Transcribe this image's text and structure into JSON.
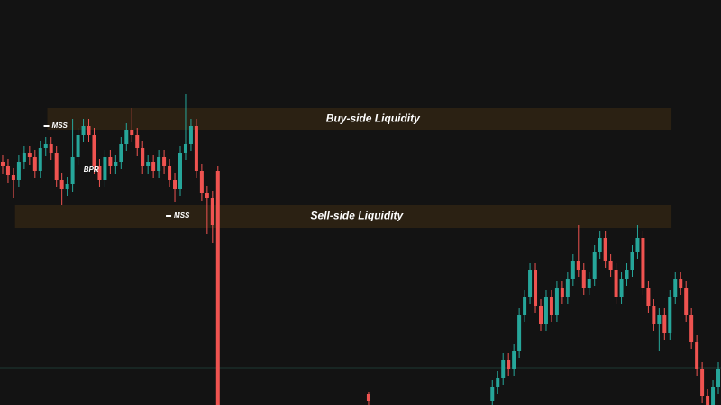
{
  "chart_data": {
    "type": "candlestick",
    "xlim": [
      -0.5,
      133.5
    ],
    "ylim": [
      0,
      450
    ],
    "up_color": "#26a69a",
    "down_color": "#ef5350",
    "x": [
      0,
      1,
      2,
      3,
      4,
      5,
      6,
      7,
      8,
      9,
      10,
      11,
      12,
      13,
      14,
      15,
      16,
      17,
      18,
      19,
      20,
      21,
      22,
      23,
      24,
      25,
      26,
      27,
      28,
      29,
      30,
      31,
      32,
      33,
      34,
      35,
      36,
      37,
      38,
      39,
      40,
      68,
      91,
      92,
      93,
      94,
      95,
      96,
      97,
      98,
      99,
      100,
      101,
      102,
      103,
      104,
      105,
      106,
      107,
      108,
      109,
      110,
      111,
      112,
      113,
      114,
      115,
      116,
      117,
      118,
      119,
      120,
      121,
      122,
      123,
      124,
      125,
      126,
      127,
      128,
      129,
      130,
      131,
      132,
      133
    ],
    "open": [
      270,
      265,
      255,
      250,
      270,
      280,
      275,
      260,
      285,
      290,
      280,
      250,
      240,
      245,
      275,
      300,
      310,
      300,
      265,
      250,
      275,
      265,
      270,
      290,
      305,
      300,
      285,
      265,
      270,
      260,
      275,
      265,
      250,
      240,
      280,
      290,
      310,
      260,
      235,
      230,
      260,
      12,
      5,
      20,
      30,
      50,
      40,
      60,
      100,
      120,
      150,
      110,
      90,
      120,
      100,
      130,
      120,
      140,
      160,
      150,
      130,
      140,
      170,
      185,
      160,
      150,
      120,
      140,
      150,
      170,
      185,
      130,
      110,
      90,
      100,
      80,
      120,
      140,
      130,
      100,
      70,
      40,
      10,
      0,
      20
    ],
    "high": [
      278,
      273,
      263,
      278,
      288,
      288,
      283,
      293,
      298,
      298,
      288,
      258,
      253,
      318,
      308,
      318,
      318,
      308,
      273,
      283,
      283,
      278,
      298,
      313,
      330,
      308,
      293,
      278,
      278,
      283,
      283,
      273,
      258,
      288,
      345,
      318,
      318,
      268,
      243,
      238,
      265,
      15,
      28,
      38,
      58,
      58,
      68,
      108,
      128,
      158,
      158,
      118,
      128,
      128,
      138,
      138,
      148,
      168,
      200,
      158,
      148,
      178,
      193,
      193,
      168,
      158,
      148,
      158,
      178,
      200,
      193,
      138,
      118,
      108,
      108,
      128,
      148,
      148,
      138,
      108,
      78,
      48,
      18,
      28,
      48
    ],
    "low": [
      257,
      247,
      230,
      242,
      262,
      267,
      252,
      252,
      277,
      272,
      242,
      222,
      232,
      237,
      267,
      292,
      292,
      257,
      242,
      242,
      257,
      257,
      262,
      282,
      292,
      277,
      257,
      257,
      252,
      252,
      257,
      242,
      225,
      232,
      272,
      282,
      252,
      227,
      190,
      180,
      0,
      0,
      0,
      12,
      22,
      32,
      32,
      52,
      92,
      112,
      102,
      82,
      82,
      92,
      92,
      112,
      112,
      132,
      142,
      122,
      122,
      132,
      162,
      152,
      142,
      112,
      112,
      132,
      142,
      162,
      122,
      102,
      82,
      60,
      72,
      72,
      112,
      122,
      92,
      62,
      32,
      2,
      0,
      0,
      12
    ],
    "close": [
      265,
      255,
      250,
      270,
      280,
      275,
      260,
      285,
      290,
      280,
      250,
      240,
      245,
      275,
      300,
      310,
      300,
      265,
      250,
      275,
      265,
      270,
      290,
      305,
      300,
      285,
      265,
      270,
      260,
      275,
      265,
      250,
      240,
      280,
      290,
      310,
      260,
      235,
      230,
      200,
      0,
      5,
      20,
      30,
      50,
      40,
      60,
      100,
      120,
      150,
      110,
      90,
      120,
      100,
      130,
      120,
      140,
      160,
      150,
      130,
      140,
      170,
      185,
      160,
      150,
      120,
      140,
      150,
      170,
      185,
      130,
      110,
      90,
      100,
      80,
      120,
      140,
      130,
      100,
      70,
      40,
      10,
      0,
      20,
      40
    ],
    "zones": [
      {
        "label": "Buy-side Liquidity",
        "x": [
          8.3,
          124.3
        ],
        "y": [
          305,
          330
        ],
        "color": "#2b2113"
      },
      {
        "label": "Sell-side Liquidity",
        "x": [
          2.3,
          124.3
        ],
        "y": [
          197,
          222
        ],
        "color": "#2b2113"
      }
    ],
    "markers": [
      {
        "label": "MSS",
        "x": 8.3,
        "y": 310
      },
      {
        "label": "BPR",
        "x": 14.2,
        "y": 261
      },
      {
        "label": "MSS",
        "x": 31,
        "y": 210
      }
    ],
    "hlines": [
      {
        "y": 41,
        "color": "#1d3a33"
      }
    ]
  }
}
